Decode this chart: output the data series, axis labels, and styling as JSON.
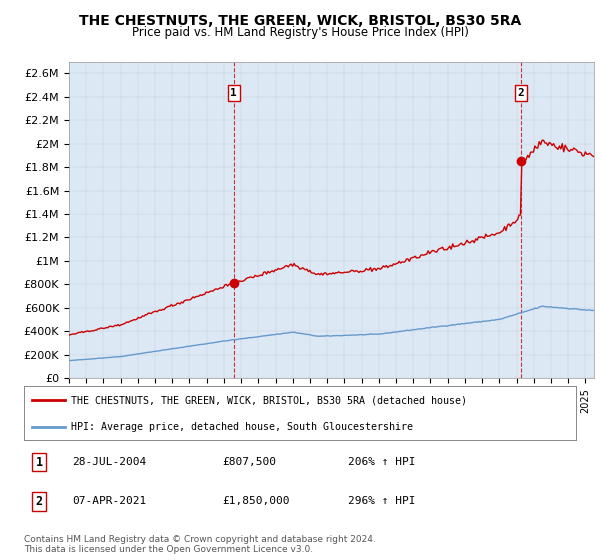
{
  "title": "THE CHESTNUTS, THE GREEN, WICK, BRISTOL, BS30 5RA",
  "subtitle": "Price paid vs. HM Land Registry's House Price Index (HPI)",
  "background_color": "#dce9f5",
  "outer_bg_color": "#ffffff",
  "ylim": [
    0,
    2700000
  ],
  "yticks": [
    0,
    200000,
    400000,
    600000,
    800000,
    1000000,
    1200000,
    1400000,
    1600000,
    1800000,
    2000000,
    2200000,
    2400000,
    2600000
  ],
  "ytick_labels": [
    "£0",
    "£200K",
    "£400K",
    "£600K",
    "£800K",
    "£1M",
    "£1.2M",
    "£1.4M",
    "£1.6M",
    "£1.8M",
    "£2M",
    "£2.2M",
    "£2.4M",
    "£2.6M"
  ],
  "sale1_date": 2004.57,
  "sale1_price": 807500,
  "sale2_date": 2021.27,
  "sale2_price": 1850000,
  "legend_line1": "THE CHESTNUTS, THE GREEN, WICK, BRISTOL, BS30 5RA (detached house)",
  "legend_line2": "HPI: Average price, detached house, South Gloucestershire",
  "note1_label": "1",
  "note1_date": "28-JUL-2004",
  "note1_price": "£807,500",
  "note1_hpi": "206% ↑ HPI",
  "note2_label": "2",
  "note2_date": "07-APR-2021",
  "note2_price": "£1,850,000",
  "note2_hpi": "296% ↑ HPI",
  "footer": "Contains HM Land Registry data © Crown copyright and database right 2024.\nThis data is licensed under the Open Government Licence v3.0.",
  "red_line_color": "#cc0000",
  "blue_line_color": "#6699cc",
  "grid_color": "#aaaaaa"
}
